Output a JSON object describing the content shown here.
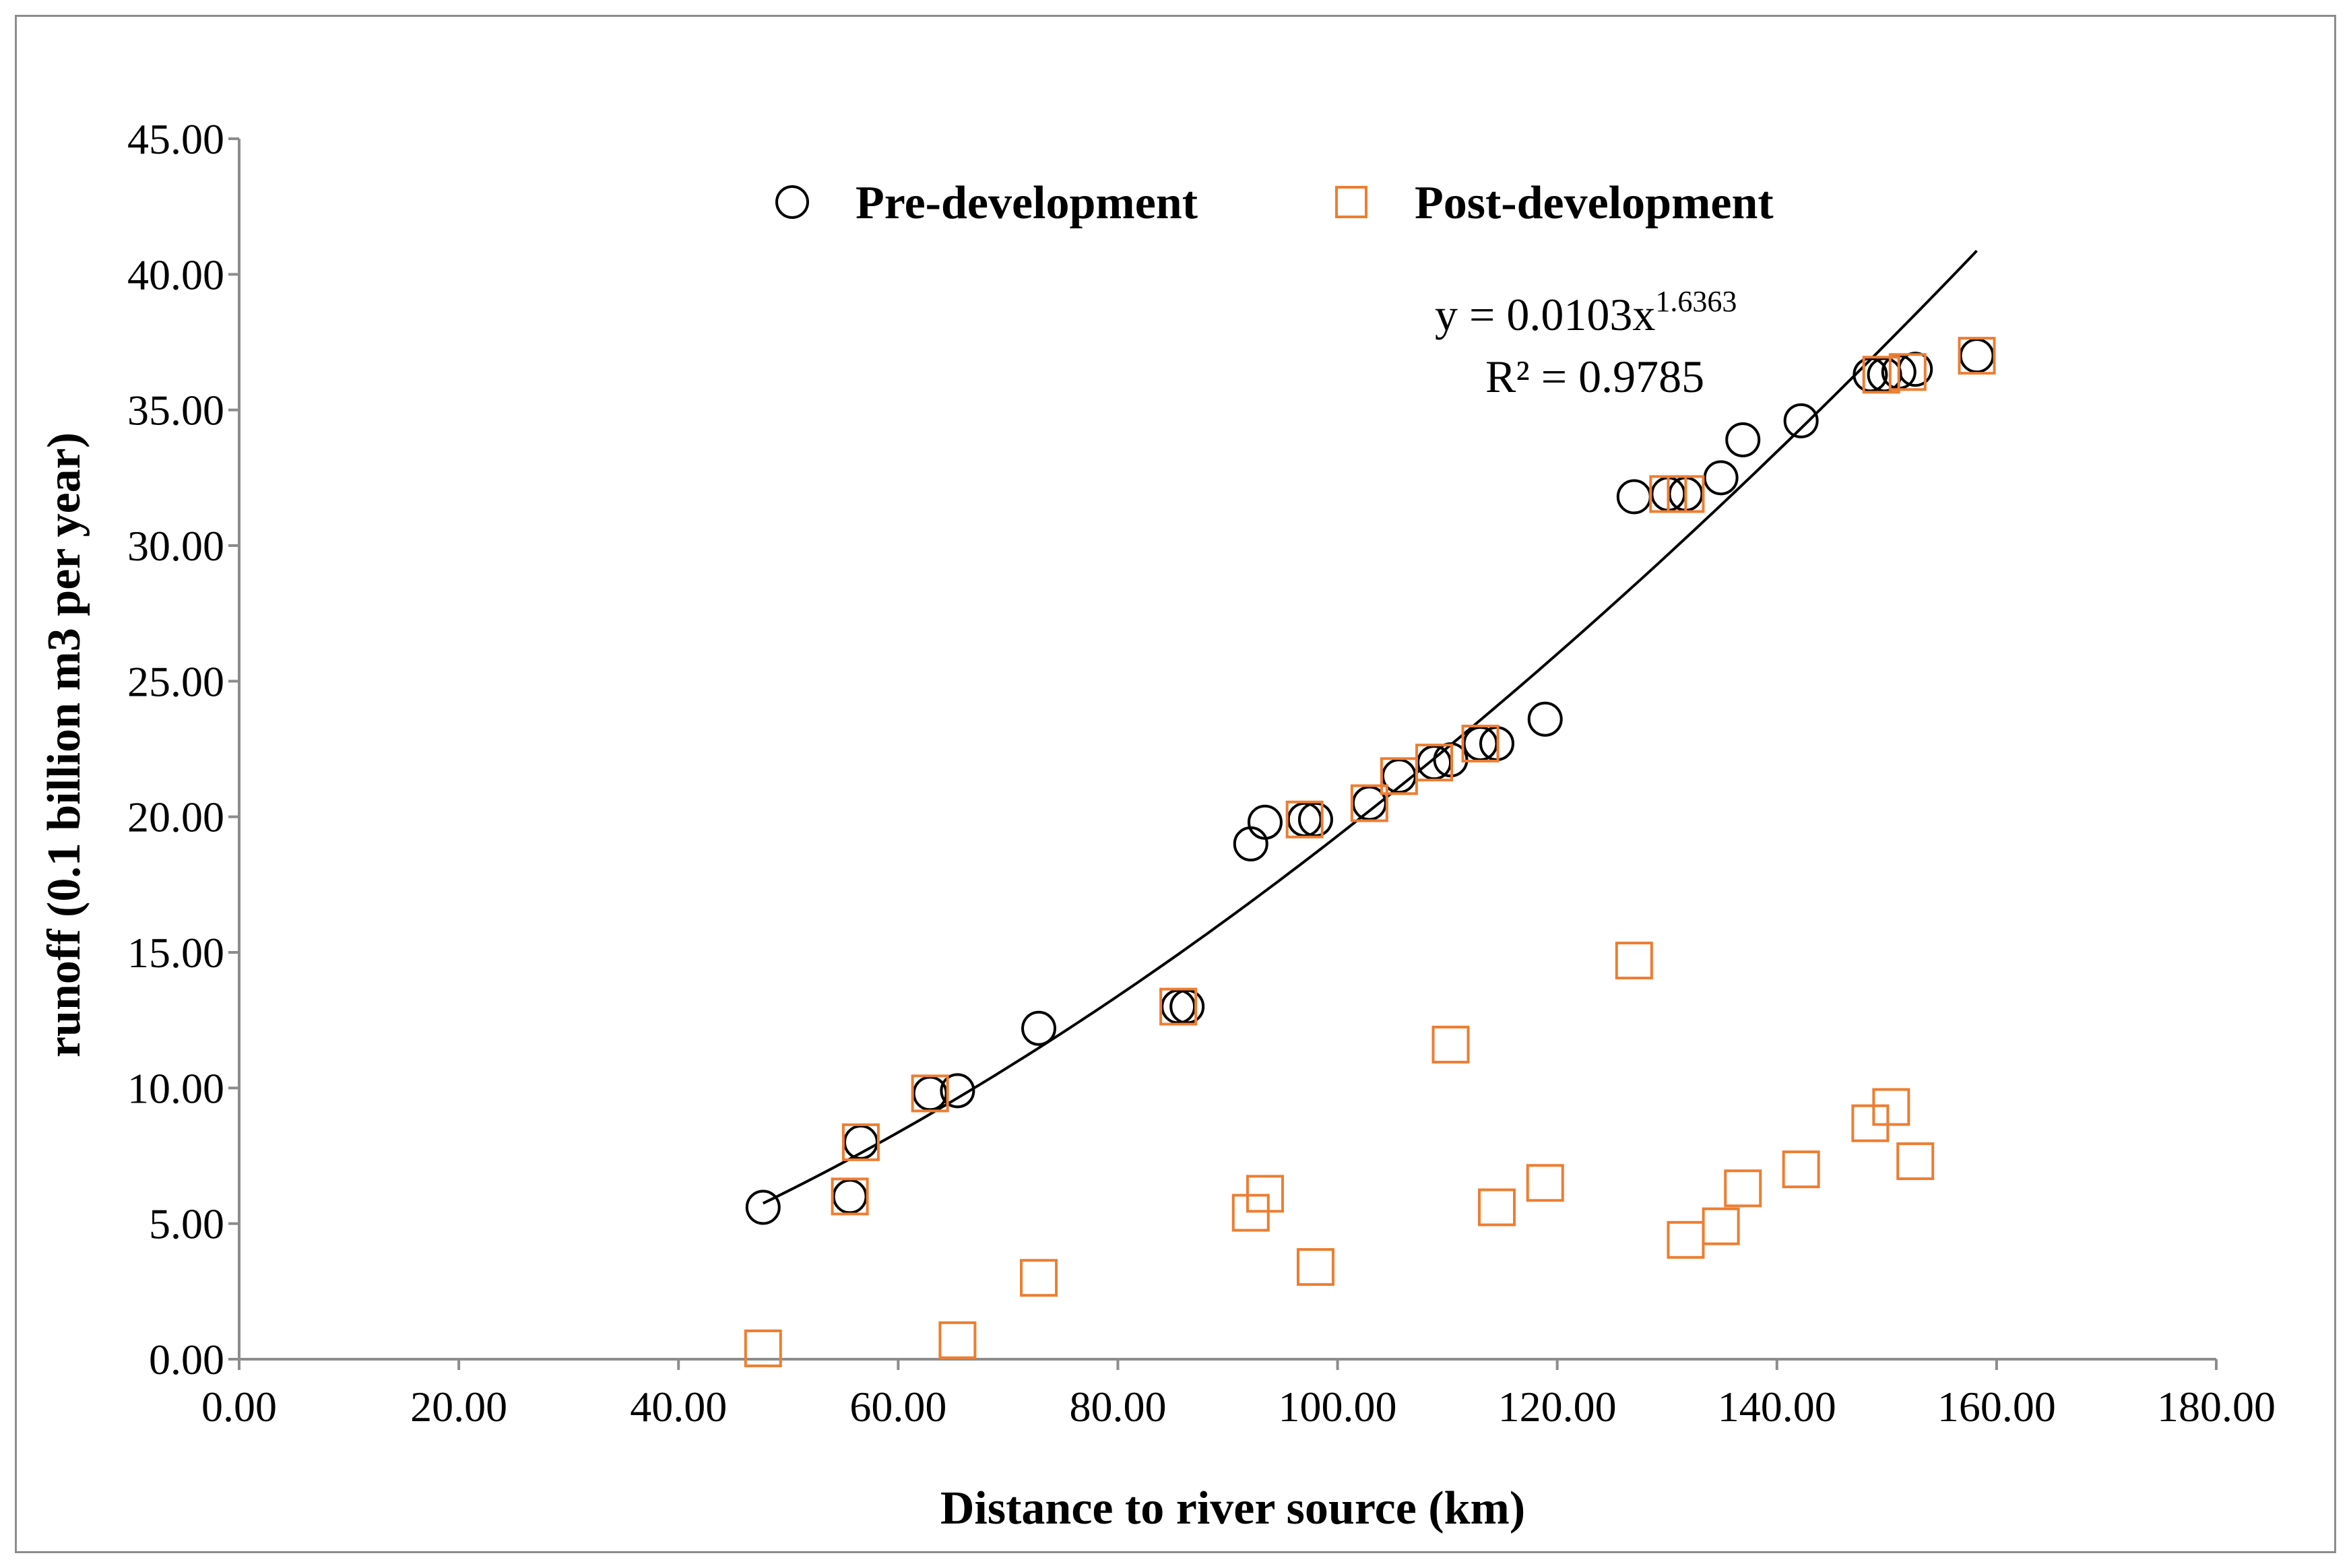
{
  "chart_data": {
    "type": "scatter",
    "title": "",
    "xlabel": "Distance to river source  (km)",
    "ylabel": "runoff (0.1 billion m3 per year)",
    "xlim": [
      0,
      180
    ],
    "ylim": [
      0,
      45
    ],
    "x_ticks": [
      "0.00",
      "20.00",
      "40.00",
      "60.00",
      "80.00",
      "100.00",
      "120.00",
      "140.00",
      "160.00",
      "180.00"
    ],
    "y_ticks": [
      "0.00",
      "5.00",
      "10.00",
      "15.00",
      "20.00",
      "25.00",
      "30.00",
      "35.00",
      "40.00",
      "45.00"
    ],
    "grid": false,
    "legend_position": "top",
    "series": [
      {
        "name": "Pre-development",
        "marker": "circle",
        "color": "#000000",
        "points": [
          [
            47.7,
            5.6
          ],
          [
            55.6,
            6.0
          ],
          [
            56.6,
            8.0
          ],
          [
            62.9,
            9.8
          ],
          [
            65.4,
            9.9
          ],
          [
            72.8,
            12.2
          ],
          [
            85.5,
            13.0
          ],
          [
            86.3,
            13.0
          ],
          [
            92.1,
            19.0
          ],
          [
            93.4,
            19.8
          ],
          [
            97.0,
            19.9
          ],
          [
            98.0,
            19.9
          ],
          [
            102.9,
            20.5
          ],
          [
            105.6,
            21.5
          ],
          [
            108.8,
            22.0
          ],
          [
            110.3,
            22.1
          ],
          [
            113.0,
            22.7
          ],
          [
            114.5,
            22.7
          ],
          [
            118.9,
            23.6
          ],
          [
            127.0,
            31.8
          ],
          [
            130.1,
            31.9
          ],
          [
            131.7,
            31.9
          ],
          [
            134.9,
            32.5
          ],
          [
            136.9,
            33.9
          ],
          [
            142.2,
            34.6
          ],
          [
            148.5,
            36.3
          ],
          [
            149.8,
            36.3
          ],
          [
            151.1,
            36.4
          ],
          [
            152.6,
            36.5
          ],
          [
            158.2,
            37.0
          ]
        ]
      },
      {
        "name": "Post-development",
        "marker": "square",
        "color": "#ed7d31",
        "points": [
          [
            47.7,
            0.4
          ],
          [
            55.6,
            6.0
          ],
          [
            56.6,
            8.0
          ],
          [
            62.9,
            9.8
          ],
          [
            65.4,
            0.7
          ],
          [
            72.8,
            3.0
          ],
          [
            85.5,
            13.0
          ],
          [
            92.1,
            5.4
          ],
          [
            93.4,
            6.1
          ],
          [
            97.0,
            19.9
          ],
          [
            98.0,
            3.4
          ],
          [
            102.9,
            20.5
          ],
          [
            105.6,
            21.5
          ],
          [
            108.8,
            22.0
          ],
          [
            110.3,
            11.6
          ],
          [
            113.0,
            22.7
          ],
          [
            114.5,
            5.6
          ],
          [
            118.9,
            6.5
          ],
          [
            127.0,
            14.7
          ],
          [
            130.1,
            31.9
          ],
          [
            131.7,
            31.9
          ],
          [
            131.7,
            4.4
          ],
          [
            134.9,
            4.9
          ],
          [
            136.9,
            6.3
          ],
          [
            142.2,
            7.0
          ],
          [
            148.5,
            8.7
          ],
          [
            149.5,
            36.3
          ],
          [
            150.4,
            9.3
          ],
          [
            151.9,
            36.4
          ],
          [
            152.6,
            7.3
          ],
          [
            158.2,
            37.0
          ]
        ]
      }
    ],
    "trendline": {
      "series": "Pre-development",
      "type": "power",
      "a": 0.0103,
      "b": 1.6363,
      "x_range": [
        47.7,
        158.2
      ],
      "equation_prefix": "y = 0.0103x",
      "equation_exponent": "1.6363",
      "r_squared": "R² = 0.9785"
    }
  }
}
